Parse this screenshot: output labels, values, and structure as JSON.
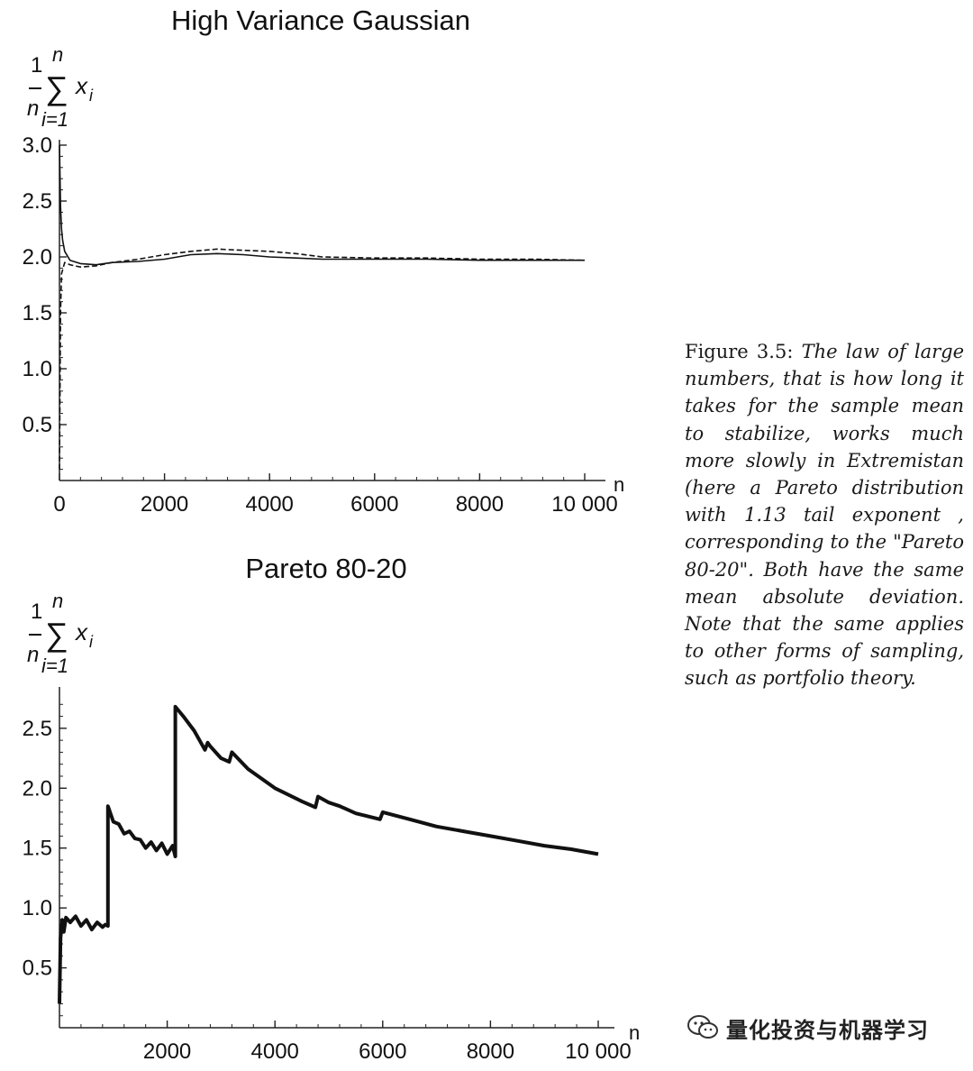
{
  "chart_data": [
    {
      "type": "line",
      "title": "High Variance Gaussian",
      "xlabel": "n",
      "ylabel": {
        "top": "n",
        "frac_num": "1",
        "frac_den": "n",
        "sum": "∑",
        "term": "x",
        "term_sub": "i",
        "bottom": "i=1"
      },
      "xlim": [
        0,
        10000
      ],
      "ylim": [
        0,
        3.0
      ],
      "xticks": [
        0,
        2000,
        4000,
        6000,
        8000,
        10000
      ],
      "xtick_labels": [
        "0",
        "2000",
        "4000",
        "6000",
        "8000",
        "10 000"
      ],
      "yticks": [
        0.5,
        1.0,
        1.5,
        2.0,
        2.5,
        3.0
      ],
      "ytick_labels": [
        "0.5",
        "1.0",
        "1.5",
        "2.0",
        "2.5",
        "3.0"
      ],
      "grid": false,
      "series": [
        {
          "style": "solid",
          "x": [
            0,
            20,
            40,
            60,
            100,
            200,
            400,
            700,
            1000,
            1500,
            2000,
            2500,
            3000,
            3500,
            4000,
            4500,
            5000,
            6000,
            7000,
            8000,
            9000,
            10000
          ],
          "y": [
            3.0,
            2.45,
            2.25,
            2.15,
            2.05,
            1.97,
            1.94,
            1.93,
            1.95,
            1.96,
            1.98,
            2.02,
            2.03,
            2.02,
            2.0,
            1.99,
            1.98,
            1.98,
            1.98,
            1.97,
            1.97,
            1.97
          ]
        },
        {
          "style": "dashed",
          "x": [
            0,
            20,
            40,
            100,
            200,
            400,
            700,
            1000,
            1500,
            2000,
            2500,
            3000,
            3500,
            4000,
            4500,
            5000,
            6000,
            7000,
            8000,
            9000,
            10000
          ],
          "y": [
            0.1,
            1.5,
            1.85,
            1.95,
            1.93,
            1.91,
            1.92,
            1.95,
            1.98,
            2.02,
            2.05,
            2.07,
            2.06,
            2.05,
            2.03,
            2.0,
            1.99,
            1.99,
            1.98,
            1.98,
            1.97
          ]
        }
      ]
    },
    {
      "type": "line",
      "title": "Pareto 80-20",
      "xlabel": "n",
      "ylabel": {
        "top": "n",
        "frac_num": "1",
        "frac_den": "n",
        "sum": "∑",
        "term": "x",
        "term_sub": "i",
        "bottom": "i=1"
      },
      "xlim": [
        0,
        10000
      ],
      "ylim": [
        0,
        2.8
      ],
      "xticks": [
        2000,
        4000,
        6000,
        8000,
        10000
      ],
      "xtick_labels": [
        "2000",
        "4000",
        "6000",
        "8000",
        "10 000"
      ],
      "yticks": [
        0.5,
        1.0,
        1.5,
        2.0,
        2.5
      ],
      "ytick_labels": [
        "0.5",
        "1.0",
        "1.5",
        "2.0",
        "2.5"
      ],
      "grid": false,
      "series": [
        {
          "style": "solid",
          "x": [
            0,
            20,
            50,
            80,
            120,
            200,
            300,
            400,
            500,
            600,
            700,
            800,
            850,
            900,
            900,
            1000,
            1100,
            1200,
            1300,
            1400,
            1500,
            1600,
            1700,
            1800,
            1900,
            2000,
            2100,
            2150,
            2150,
            2300,
            2500,
            2700,
            2750,
            2800,
            3000,
            3150,
            3200,
            3500,
            4000,
            4500,
            4750,
            4800,
            5000,
            5200,
            5500,
            5950,
            6000,
            6500,
            7000,
            7500,
            8000,
            8500,
            9000,
            9500,
            10000
          ],
          "y": [
            0.2,
            0.75,
            0.9,
            0.8,
            0.92,
            0.88,
            0.93,
            0.85,
            0.9,
            0.82,
            0.88,
            0.84,
            0.86,
            0.85,
            1.85,
            1.72,
            1.7,
            1.62,
            1.64,
            1.58,
            1.57,
            1.5,
            1.55,
            1.48,
            1.54,
            1.45,
            1.52,
            1.43,
            2.68,
            2.6,
            2.48,
            2.32,
            2.38,
            2.35,
            2.25,
            2.22,
            2.3,
            2.16,
            2.0,
            1.89,
            1.84,
            1.93,
            1.88,
            1.85,
            1.79,
            1.74,
            1.8,
            1.74,
            1.68,
            1.64,
            1.6,
            1.56,
            1.52,
            1.49,
            1.45
          ]
        }
      ]
    }
  ],
  "caption": {
    "lead": "Figure 3.5: ",
    "body": "The law of large numbers, that is how long it takes for the sample mean to stabilize, works much more slowly in Extremistan (here a Pareto distribution with 1.13 tail exponent , corresponding to the \"Pareto 80-20\". Both have the same mean absolute deviation. Note that the same applies to other forms of sampling, such as portfolio theory."
  },
  "watermark": {
    "text": "量化投资与机器学习",
    "icon": "wechat-icon"
  }
}
